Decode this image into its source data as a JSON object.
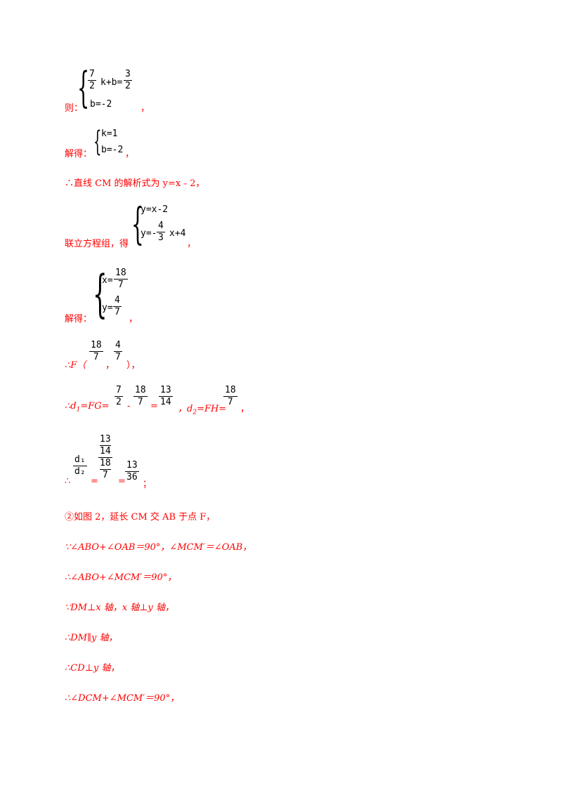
{
  "block1": {
    "prefix": "则：",
    "eq1_frac_num": "7",
    "eq1_frac_den": "2",
    "eq1_mid": "k+b=",
    "eq1_rhs_num": "3",
    "eq1_rhs_den": "2",
    "eq2": "b=-2",
    "suffix": "，"
  },
  "block2": {
    "prefix": "解得：",
    "eq1": "k=1",
    "eq2": "b=-2",
    "suffix": "，"
  },
  "line_cm": "∴直线 CM 的解析式为 y=x﹣2，",
  "block3": {
    "prefix": "联立方程组，得",
    "eq1": "y=x-2",
    "eq2_lhs": "y=-",
    "eq2_num": "4",
    "eq2_den": "3",
    "eq2_rhs": "x+4",
    "suffix": "，"
  },
  "block4": {
    "prefix": "解得：",
    "x_lhs": "x=",
    "x_num": "18",
    "x_den": "7",
    "y_lhs": "y=",
    "y_num": "4",
    "y_den": "7",
    "suffix": "，"
  },
  "line_f": {
    "prefix": "∴F（",
    "num1": "18",
    "den1": "7",
    "comma": "，",
    "num2": "4",
    "den2": "7",
    "suffix": "），"
  },
  "line_d": {
    "prefix": "∴d",
    "sub1": "1",
    "mid1": "=FG=",
    "a_num": "7",
    "a_den": "2",
    "minus": "-",
    "b_num": "18",
    "b_den": "7",
    "eq": "=",
    "c_num": "13",
    "c_den": "14",
    "sep": "，d",
    "sub2": "2",
    "mid2": "=FH=",
    "d_num": "18",
    "d_den": "7",
    "suffix": "，"
  },
  "line_ratio": {
    "prefix": "∴",
    "l_num": "d₁",
    "l_den": "d₂",
    "eq1": "=",
    "top_num": "13",
    "top_den": "14",
    "bot_num": "18",
    "bot_den": "7",
    "eq2": "=",
    "r_num": "13",
    "r_den": "36",
    "suffix": "；"
  },
  "lines": [
    "②如图 2，延长 CM 交 AB 于点 F，",
    "∵∠ABO+∠OAB＝90°，∠MCM′＝∠OAB，",
    "∴∠ABO+∠MCM′＝90°，",
    "∵DM⊥x 轴，x 轴⊥y 轴，",
    "∴DM∥y 轴，",
    "∴CD⊥y 轴，",
    "∴∠DCM+∠MCM′＝90°，"
  ],
  "colors": {
    "text": "#ff0000",
    "math": "#000000"
  }
}
